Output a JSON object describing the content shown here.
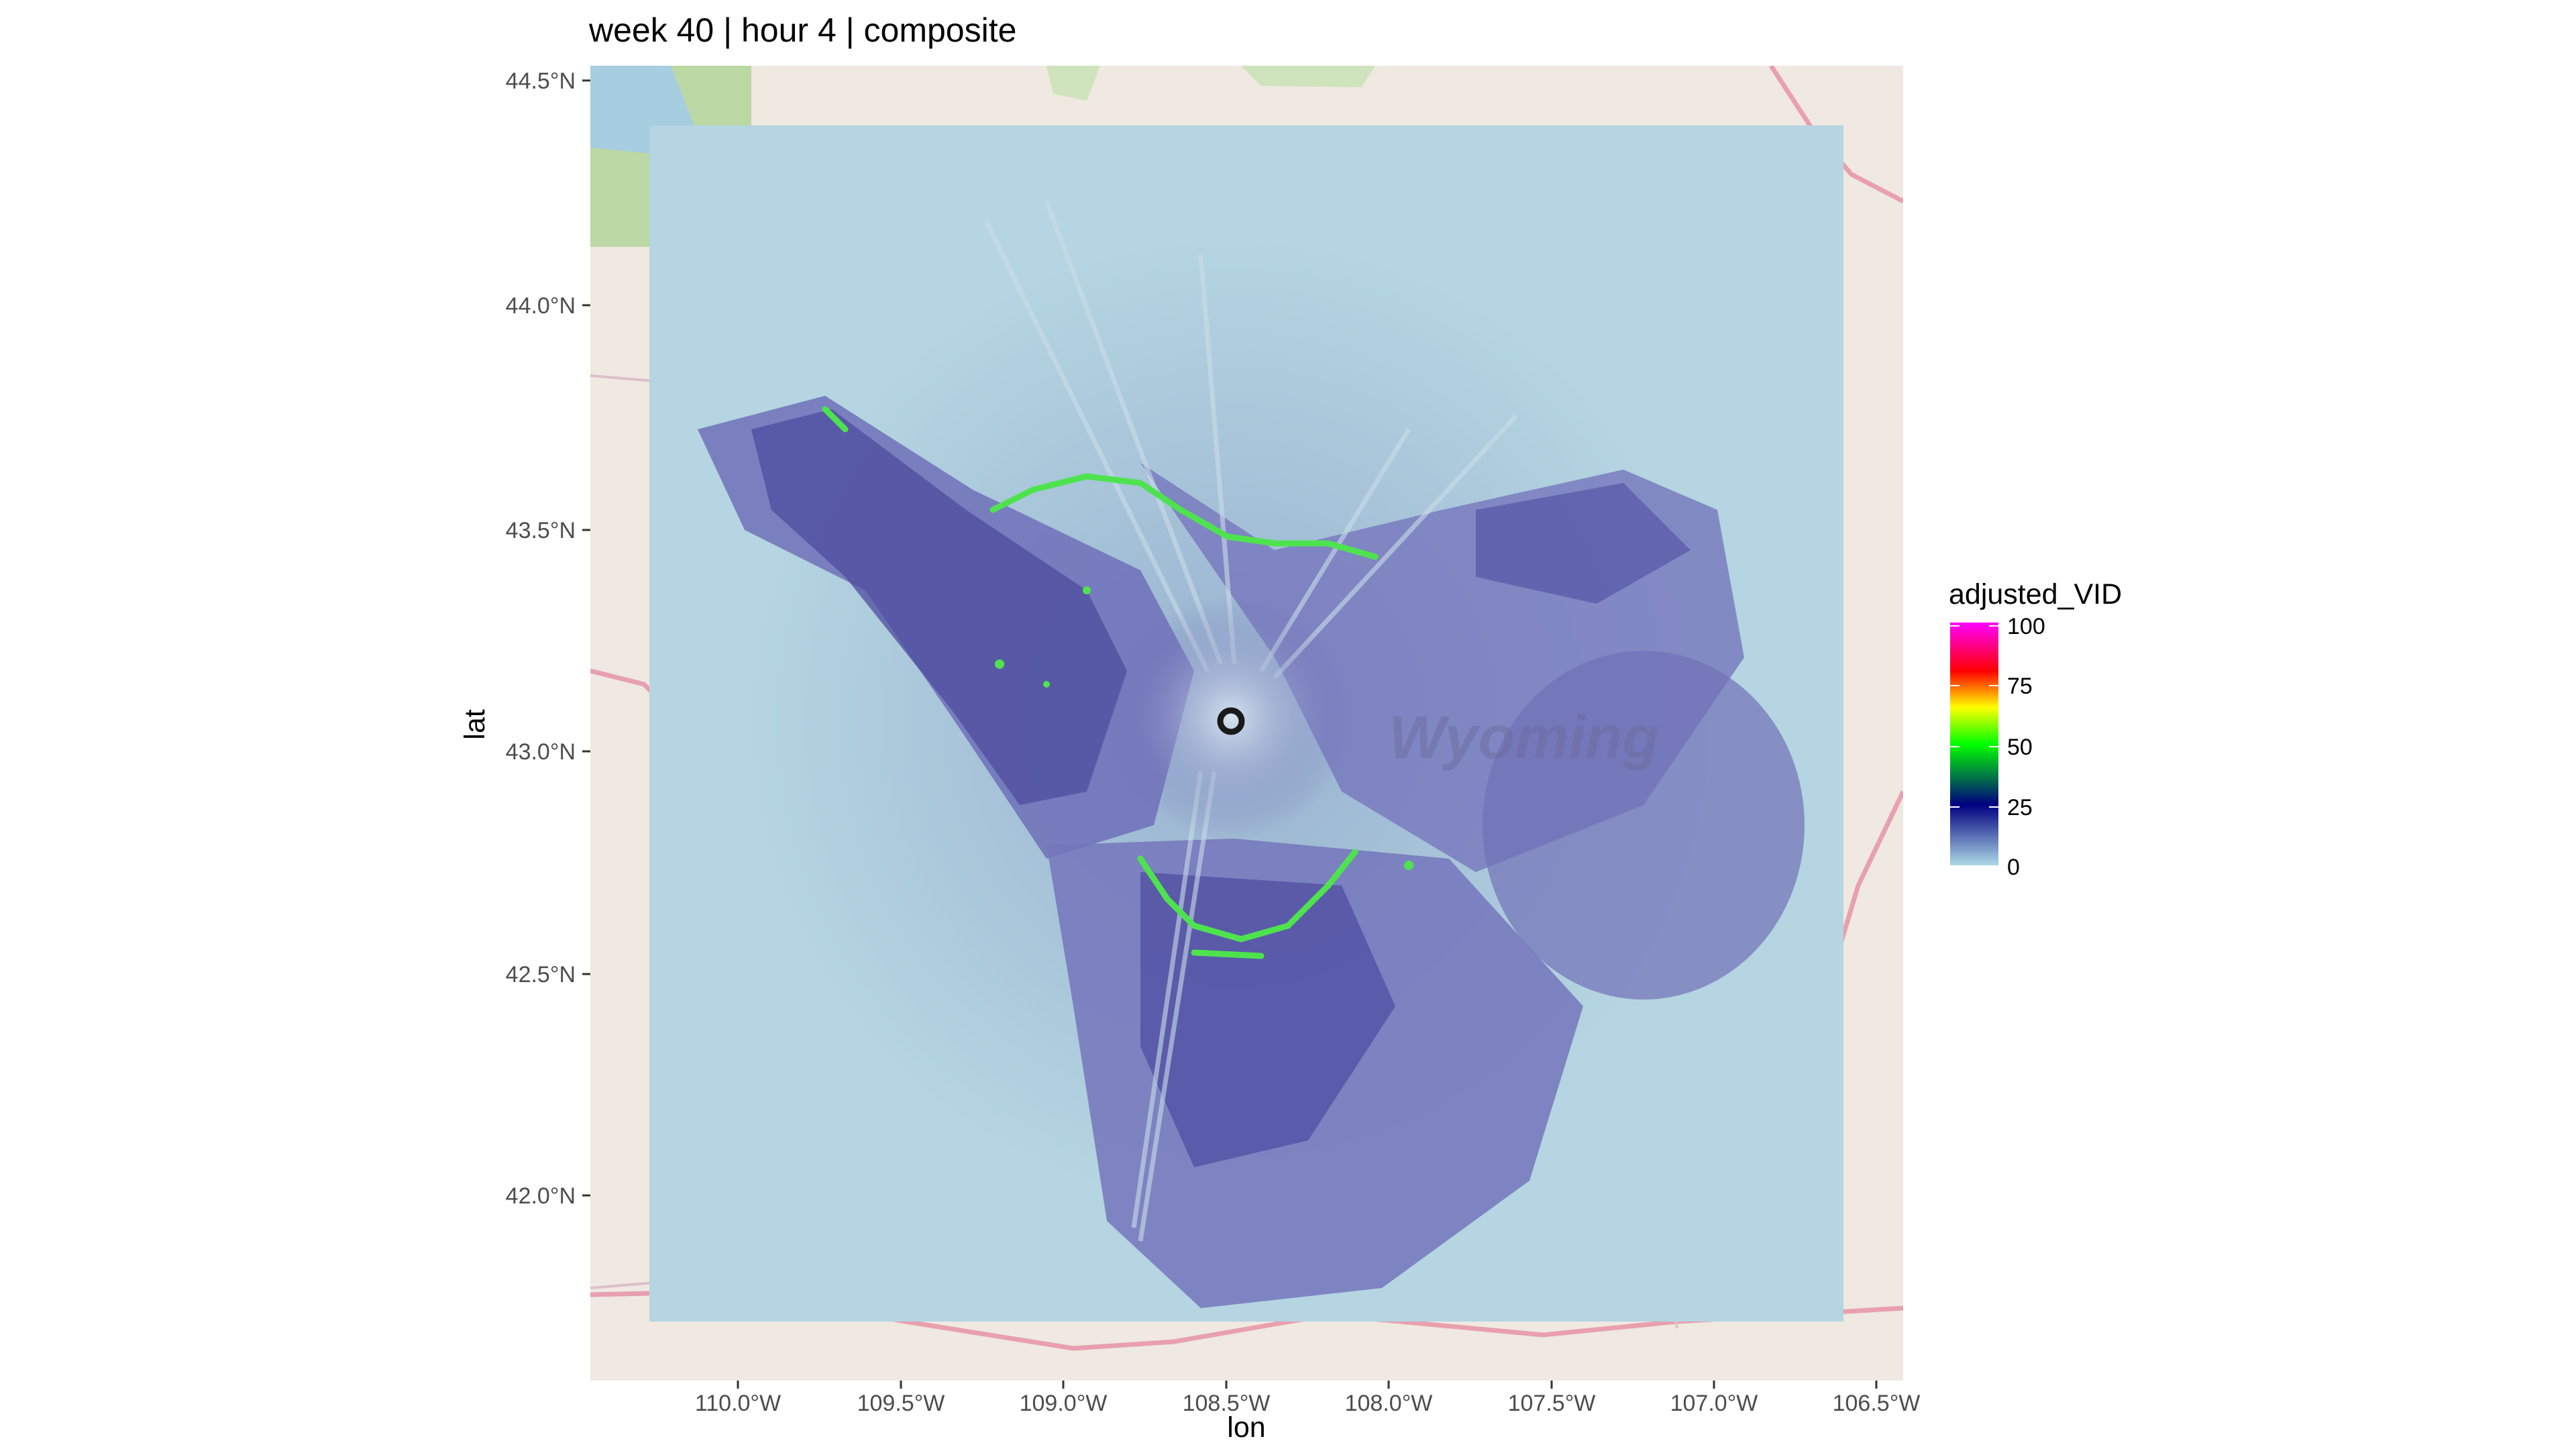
{
  "plot": {
    "title": "week 40 | hour 4 | composite",
    "x_axis_label": "lon",
    "y_axis_label": "lat",
    "x_ticks": [
      "110.0°W",
      "109.5°W",
      "109.0°W",
      "108.5°W",
      "108.0°W",
      "107.5°W",
      "107.0°W",
      "106.5°W"
    ],
    "y_ticks": [
      "44.5°N",
      "44.0°N",
      "43.5°N",
      "43.0°N",
      "42.5°N",
      "42.0°N"
    ],
    "extent": {
      "lon": [
        -110.45,
        -106.42
      ],
      "lat": [
        41.62,
        44.55
      ]
    },
    "basemap_label": "Wyoming"
  },
  "radar_site": {
    "lon": -108.48,
    "lat": 43.07
  },
  "legend": {
    "title": "adjusted_VID",
    "labels": [
      "100",
      "75",
      "50",
      "25",
      "0"
    ],
    "colors": [
      "#ff00ff",
      "#ff0000",
      "#ffff00",
      "#00ff00",
      "#000080",
      "#add8e6"
    ]
  }
}
